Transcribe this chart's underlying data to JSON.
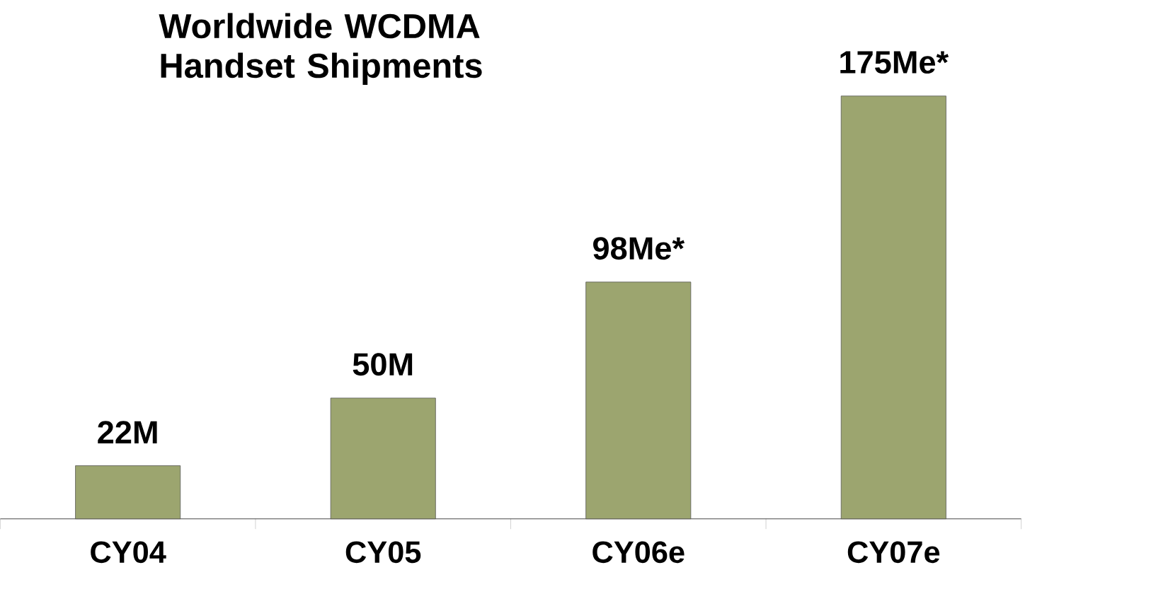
{
  "chart_data": {
    "type": "bar",
    "title": "Worldwide WCDMA Handset Shipments",
    "categories": [
      "CY04",
      "CY05",
      "CY06e",
      "CY07e"
    ],
    "values": [
      22,
      50,
      98,
      175
    ],
    "value_labels": [
      "22M",
      "50M",
      "98Me*",
      "175Me*"
    ],
    "color": "#9ca56f"
  }
}
